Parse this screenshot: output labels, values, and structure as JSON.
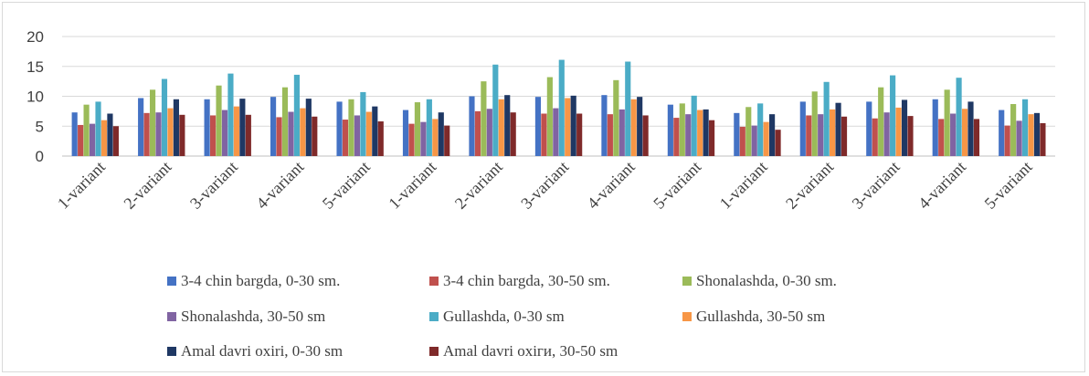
{
  "chart_data": {
    "type": "bar",
    "title": "",
    "xlabel": "",
    "ylabel": "",
    "ylim": [
      0,
      20
    ],
    "yticks": [
      0,
      5,
      10,
      15,
      20
    ],
    "grid": true,
    "legend_position": "bottom",
    "categories": [
      "1-variant",
      "2-variant",
      "3-variant",
      "4-variant",
      "5-variant",
      "1-variant",
      "2-variant",
      "3-variant",
      "4-variant",
      "5-variant",
      "1-variant",
      "2-variant",
      "3-variant",
      "4-variant",
      "5-variant"
    ],
    "series": [
      {
        "name": "3-4 chin bargda, 0-30 sm.",
        "color": "#4472C4",
        "values": [
          7.3,
          9.7,
          9.5,
          9.9,
          9.1,
          7.7,
          10.0,
          9.9,
          10.2,
          8.6,
          7.2,
          9.1,
          9.1,
          9.5,
          7.7
        ]
      },
      {
        "name": "3-4 chin bargda, 30-50 sm.",
        "color": "#C0504D",
        "values": [
          5.2,
          7.2,
          6.8,
          6.5,
          6.1,
          5.4,
          7.5,
          7.1,
          7.0,
          6.4,
          4.9,
          6.8,
          6.3,
          6.2,
          5.1
        ]
      },
      {
        "name": "Shonalashda, 0-30 sm.",
        "color": "#9BBB59",
        "values": [
          8.6,
          11.1,
          11.8,
          11.5,
          9.5,
          9.0,
          12.5,
          13.2,
          12.7,
          8.8,
          8.2,
          10.8,
          11.5,
          11.1,
          8.7
        ]
      },
      {
        "name": "Shonalashda, 30-50 sm",
        "color": "#8064A2",
        "values": [
          5.4,
          7.3,
          7.7,
          7.4,
          6.8,
          5.7,
          7.9,
          8.0,
          7.8,
          7.0,
          5.1,
          7.0,
          7.3,
          7.1,
          5.9
        ]
      },
      {
        "name": "Gullashda, 0-30 sm",
        "color": "#4BACC6",
        "values": [
          9.1,
          12.9,
          13.8,
          13.6,
          10.7,
          9.5,
          15.3,
          16.1,
          15.8,
          10.1,
          8.8,
          12.4,
          13.5,
          13.1,
          9.5
        ]
      },
      {
        "name": "Gullashda, 30-50 sm",
        "color": "#F79646",
        "values": [
          6.0,
          8.0,
          8.3,
          8.0,
          7.4,
          6.2,
          9.5,
          9.7,
          9.5,
          7.7,
          5.7,
          7.8,
          8.1,
          7.9,
          7.0
        ]
      },
      {
        "name": "Amal davri oxiri, 0-30 sm",
        "color": "#1F3864",
        "values": [
          7.1,
          9.5,
          9.6,
          9.6,
          8.3,
          7.3,
          10.2,
          10.1,
          9.9,
          7.8,
          7.0,
          8.9,
          9.4,
          9.1,
          7.2
        ]
      },
      {
        "name": "Amal davri oxiги, 30-50 sm",
        "color": "#7F2A2A",
        "values": [
          5.0,
          6.9,
          6.9,
          6.6,
          5.8,
          5.1,
          7.3,
          7.1,
          6.8,
          6.0,
          4.4,
          6.6,
          6.7,
          6.2,
          5.5
        ]
      }
    ]
  }
}
